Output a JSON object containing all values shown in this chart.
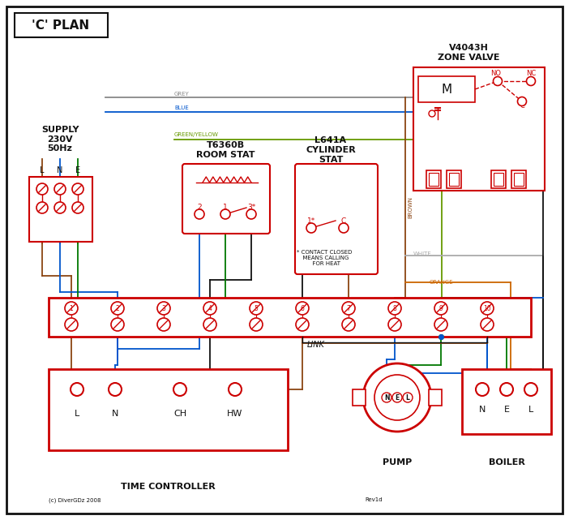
{
  "title": "'C' PLAN",
  "bg_color": "#ffffff",
  "red": "#cc0000",
  "blue": "#0055cc",
  "green": "#007700",
  "grey": "#888888",
  "brown": "#8B4513",
  "orange": "#cc6600",
  "black": "#111111",
  "green_yellow": "#669900",
  "terminal_numbers": [
    "1",
    "2",
    "3",
    "4",
    "5",
    "6",
    "7",
    "8",
    "9",
    "10"
  ],
  "supply_text": "SUPPLY\n230V\n50Hz",
  "zone_valve_text": "V4043H\nZONE VALVE",
  "room_stat_text": "T6360B\nROOM STAT",
  "cylinder_stat_text": "L641A\nCYLINDER\nSTAT",
  "time_controller_text": "TIME CONTROLLER",
  "pump_text": "PUMP",
  "boiler_text": "BOILER",
  "link_text": "LINK",
  "footnote_text": "* CONTACT CLOSED\n  MEANS CALLING\n  FOR HEAT",
  "copyright_text": "(c) DiverGDz 2008",
  "rev_text": "Rev1d"
}
